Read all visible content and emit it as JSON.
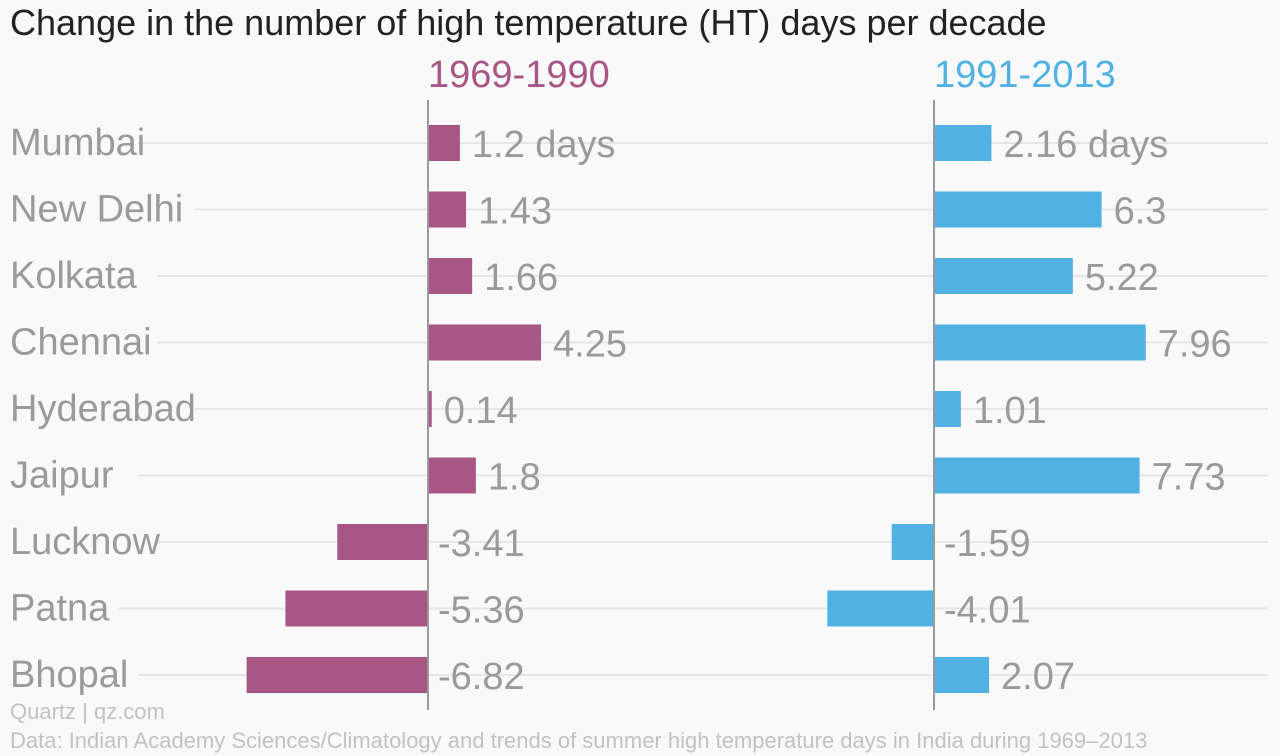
{
  "chart_data": {
    "type": "bar",
    "orientation": "horizontal",
    "title": "Change in the number of high temperature (HT) days per decade",
    "categories": [
      "Mumbai",
      "New Delhi",
      "Kolkata",
      "Chennai",
      "Hyderabad",
      "Jaipur",
      "Lucknow",
      "Patna",
      "Bhopal"
    ],
    "series": [
      {
        "name": "1969-1990",
        "color": "#a85685",
        "values": [
          1.2,
          1.43,
          1.66,
          4.25,
          0.14,
          1.8,
          -3.41,
          -5.36,
          -6.82
        ],
        "value_labels": [
          "1.2 days",
          "1.43",
          "1.66",
          "4.25",
          "0.14",
          "1.8",
          "-3.41",
          "-5.36",
          "-6.82"
        ]
      },
      {
        "name": "1991-2013",
        "color": "#52b1e3",
        "values": [
          2.16,
          6.3,
          5.22,
          7.96,
          1.01,
          7.73,
          -1.59,
          -4.01,
          2.07
        ],
        "value_labels": [
          "2.16 days",
          "6.3",
          "5.22",
          "7.96",
          "1.01",
          "7.73",
          "-1.59",
          "-4.01",
          "2.07"
        ]
      }
    ],
    "grid": true,
    "legend": "series labels above each panel"
  },
  "credit": "Quartz | qz.com",
  "source": "Data: Indian Academy Sciences/Climatology and trends of summer high temperature days in India during 1969–2013",
  "colors": {
    "title": "#222222",
    "category_label": "#9a9a9a",
    "value_label": "#9a9a9a",
    "gridline": "#e6e6e6",
    "axis": "#9a9a9a",
    "source": "#c2c2c2"
  }
}
